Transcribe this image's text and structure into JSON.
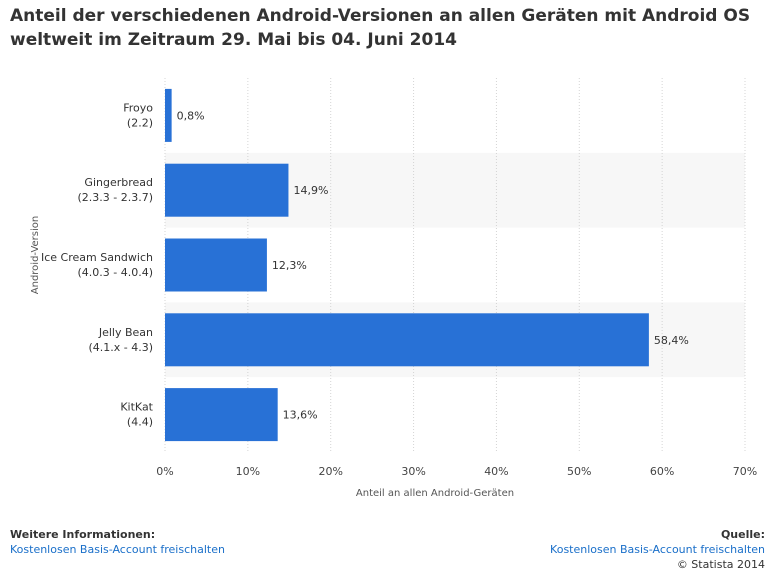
{
  "title": "Anteil der verschiedenen Android-Versionen an allen Geräten mit Android OS weltweit im Zeitraum 29. Mai bis 04. Juni 2014",
  "chart_data": {
    "type": "bar",
    "orientation": "horizontal",
    "categories": [
      [
        "Froyo",
        "(2.2)"
      ],
      [
        "Gingerbread",
        "(2.3.3 - 2.3.7)"
      ],
      [
        "Ice Cream Sandwich",
        "(4.0.3 - 4.0.4)"
      ],
      [
        "Jelly Bean",
        "(4.1.x - 4.3)"
      ],
      [
        "KitKat",
        "(4.4)"
      ]
    ],
    "values": [
      0.8,
      14.9,
      12.3,
      58.4,
      13.6
    ],
    "value_labels": [
      "0,8%",
      "14,9%",
      "12,3%",
      "58,4%",
      "13,6%"
    ],
    "xlim": [
      0,
      70
    ],
    "xticks": [
      0,
      10,
      20,
      30,
      40,
      50,
      60,
      70
    ],
    "xtick_labels": [
      "0%",
      "10%",
      "20%",
      "30%",
      "40%",
      "50%",
      "60%",
      "70%"
    ],
    "xlabel": "Anteil an allen Android-Geräten",
    "ylabel": "Android-Version",
    "bar_color": "#2871d6",
    "grid": true
  },
  "footer": {
    "info_heading": "Weitere Informationen:",
    "info_link": "Kostenlosen Basis-Account freischalten",
    "source_heading": "Quelle:",
    "source_link": "Kostenlosen Basis-Account freischalten",
    "copyright": "© Statista 2014"
  }
}
